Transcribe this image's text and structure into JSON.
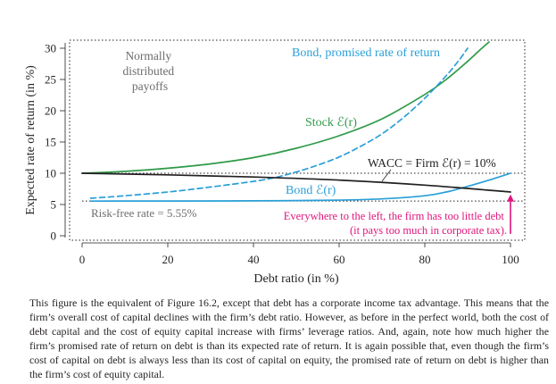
{
  "chart_data": {
    "type": "line",
    "xlabel": "Debt ratio (in %)",
    "ylabel": "Expected rate of return (in %)",
    "xlim": [
      0,
      100
    ],
    "ylim": [
      0,
      31
    ],
    "xticks": [
      0,
      20,
      40,
      60,
      80,
      100
    ],
    "yticks": [
      0,
      5,
      10,
      15,
      20,
      25,
      30
    ],
    "grid": false,
    "border": "dotted",
    "series": [
      {
        "name": "Stock ℰ(r)",
        "color": "#2e9a47",
        "style": "solid",
        "x": [
          0,
          10,
          20,
          30,
          40,
          50,
          60,
          70,
          80,
          85,
          90,
          93,
          95
        ],
        "y": [
          10.0,
          10.3,
          10.8,
          11.5,
          12.5,
          14.0,
          16.0,
          18.7,
          22.6,
          25.0,
          27.9,
          29.8,
          31.0
        ]
      },
      {
        "name": "Bond, promised rate of return",
        "color": "#2a9fd8",
        "style": "dashed",
        "x": [
          2,
          10,
          20,
          30,
          40,
          45,
          50,
          55,
          60,
          65,
          70,
          75,
          80,
          85,
          88,
          90
        ],
        "y": [
          6.0,
          6.4,
          7.0,
          7.8,
          8.7,
          9.3,
          10.2,
          11.3,
          12.6,
          14.3,
          16.3,
          18.9,
          22.0,
          25.6,
          28.1,
          30.0
        ]
      },
      {
        "name": "Bond ℰ(r)",
        "color": "#2a9fd8",
        "style": "solid",
        "x": [
          2,
          20,
          40,
          60,
          70,
          80,
          85,
          90,
          95,
          100
        ],
        "y": [
          5.55,
          5.56,
          5.58,
          5.7,
          5.9,
          6.4,
          7.0,
          7.9,
          8.9,
          10.0
        ]
      },
      {
        "name": "WACC = Firm ℰ(r) = 10%",
        "color": "#231f20",
        "style": "solid",
        "x": [
          0,
          20,
          40,
          60,
          80,
          100
        ],
        "y": [
          10.0,
          9.75,
          9.4,
          8.9,
          8.1,
          7.0
        ]
      }
    ],
    "reference_lines": [
      {
        "y": 10,
        "label": "WACC = Firm ℰ(r) = 10%",
        "style": "dotted"
      },
      {
        "y": 5.55,
        "label": "Risk-free rate = 5.55%",
        "style": "dotted"
      }
    ],
    "annotations": {
      "normally_distributed": [
        "Normally",
        "distributed",
        "payoffs"
      ],
      "stock": "Stock ℰ(r)",
      "bond_promised": "Bond, promised rate of return",
      "bond_expected": "Bond ℰ(r)",
      "wacc": "WACC = Firm ℰ(r) = 10%",
      "risk_free": "Risk-free rate = 5.55%",
      "tax_note": [
        "Everywhere to the left, the firm has too little debt",
        "(it pays too much in corporate tax)."
      ]
    },
    "arrow": {
      "x": 100,
      "y_from": 0.3,
      "y_to": 6.6,
      "color": "#e0147c"
    },
    "colors": {
      "stock": "#2e9a47",
      "bond": "#2a9fd8",
      "wacc": "#231f20",
      "highlight": "#e0147c",
      "text": "#231f20"
    }
  },
  "caption": "This figure is the equivalent of Figure 16.2, except that debt has a corporate income tax advantage. This means that the firm’s overall cost of capital declines with the firm’s debt ratio. However, as before in the perfect world, both the cost of debt capital and the cost of equity capital increase with firms’ leverage ratios. And, again, note how much higher the firm’s promised rate of return on debt is than its expected rate of return. It is again possible that, even though the firm’s cost of capital on debt is always less than its cost of capital on equity, the promised rate of return on debt is higher than the firm’s cost of equity capital."
}
